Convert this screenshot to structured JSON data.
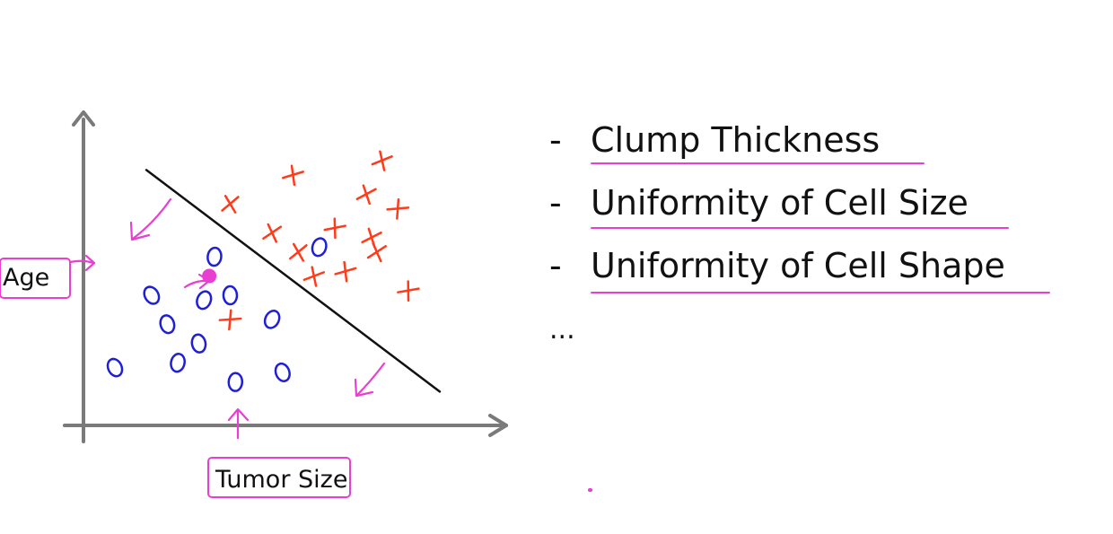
{
  "chart_data": {
    "type": "scatter",
    "title": "",
    "xlabel": "Tumor Size",
    "ylabel": "Age",
    "series": [
      {
        "marker": "o",
        "color": "#1f1fd6",
        "points": [
          [
            1.3,
            2.7
          ],
          [
            2.5,
            3.5
          ],
          [
            1.6,
            2.1
          ],
          [
            2.3,
            2.6
          ],
          [
            2.8,
            2.7
          ],
          [
            0.6,
            1.2
          ],
          [
            1.8,
            1.3
          ],
          [
            2.2,
            1.7
          ],
          [
            3.6,
            2.2
          ],
          [
            2.9,
            0.9
          ],
          [
            3.8,
            1.1
          ],
          [
            4.5,
            3.7
          ]
        ]
      },
      {
        "marker": "x",
        "color": "#ff3b1a",
        "points": [
          [
            2.8,
            4.6
          ],
          [
            4.0,
            5.2
          ],
          [
            3.6,
            4.0
          ],
          [
            4.8,
            4.1
          ],
          [
            5.4,
            4.8
          ],
          [
            6.0,
            4.5
          ],
          [
            5.7,
            5.5
          ],
          [
            4.1,
            3.6
          ],
          [
            5.0,
            3.2
          ],
          [
            5.6,
            3.6
          ],
          [
            6.2,
            2.8
          ],
          [
            5.5,
            3.9
          ],
          [
            2.8,
            2.2
          ],
          [
            4.4,
            3.1
          ]
        ]
      }
    ],
    "decision_boundary": [
      [
        1.2,
        5.3
      ],
      [
        6.8,
        0.7
      ]
    ],
    "query_point": {
      "x": 2.4,
      "y": 3.1,
      "color": "#e93fd0"
    },
    "xlim": [
      0,
      8
    ],
    "ylim": [
      0,
      6.5
    ],
    "grid": false,
    "colors": {
      "axis": "#7a7a7a",
      "boundary": "#111111",
      "annotation": "#e93fd0"
    }
  },
  "features": [
    {
      "dash": "-",
      "text": "Clump Thickness"
    },
    {
      "dash": "-",
      "text": "Uniformity of Cell Size"
    },
    {
      "dash": "-",
      "text": "Uniformity of Cell Shape"
    }
  ],
  "ellipsis": "..."
}
